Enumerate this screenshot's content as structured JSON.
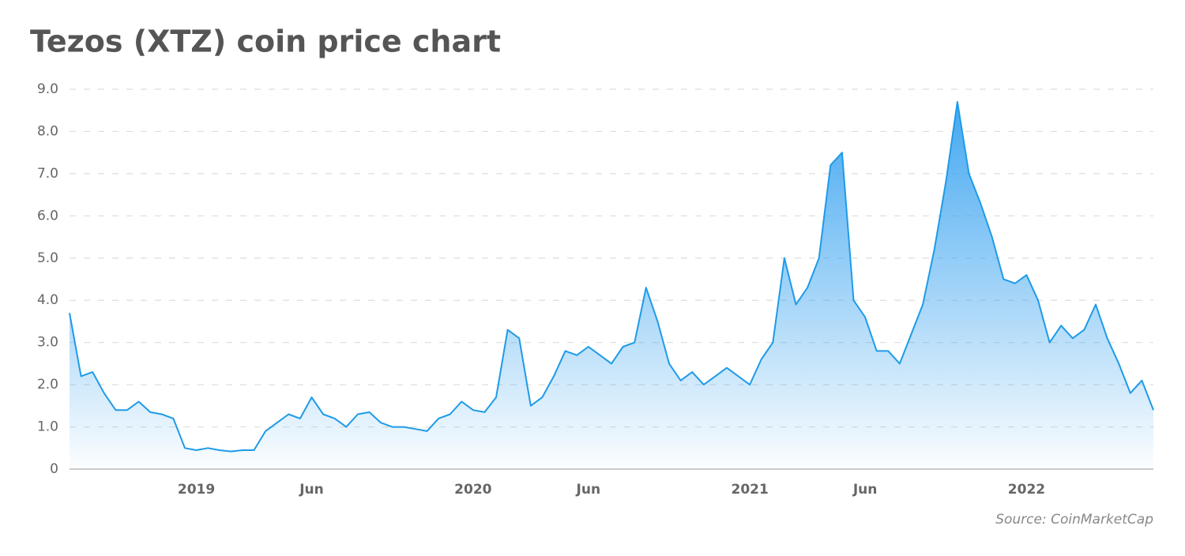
{
  "chart_data": {
    "type": "area",
    "title": "Tezos (XTZ) coin price chart",
    "source": "Source: CoinMarketCap",
    "categories": [
      null,
      null,
      null,
      null,
      null,
      null,
      null,
      null,
      null,
      null,
      null,
      "2019",
      null,
      null,
      null,
      null,
      null,
      null,
      null,
      null,
      null,
      "Jun",
      null,
      null,
      null,
      null,
      null,
      null,
      null,
      null,
      null,
      null,
      null,
      null,
      null,
      "2020",
      null,
      null,
      null,
      null,
      null,
      null,
      null,
      null,
      null,
      "Jun",
      null,
      null,
      null,
      null,
      null,
      null,
      null,
      null,
      null,
      null,
      null,
      null,
      null,
      "2021",
      null,
      null,
      null,
      null,
      null,
      null,
      null,
      null,
      null,
      "Jun",
      null,
      null,
      null,
      null,
      null,
      null,
      null,
      null,
      null,
      null,
      null,
      null,
      null,
      "2022",
      null,
      null,
      null,
      null,
      null,
      null,
      null,
      null,
      null,
      null,
      null
    ],
    "values": [
      3.7,
      2.2,
      2.3,
      1.8,
      1.4,
      1.4,
      1.6,
      1.35,
      1.3,
      1.2,
      0.5,
      0.45,
      0.5,
      0.45,
      0.42,
      0.45,
      0.45,
      0.9,
      1.1,
      1.3,
      1.2,
      1.7,
      1.3,
      1.2,
      1.0,
      1.3,
      1.35,
      1.1,
      1.0,
      1.0,
      0.95,
      0.9,
      1.2,
      1.3,
      1.6,
      1.4,
      1.35,
      1.7,
      3.3,
      3.1,
      1.5,
      1.7,
      2.2,
      2.8,
      2.7,
      2.9,
      2.7,
      2.5,
      2.9,
      3.0,
      4.3,
      3.5,
      2.5,
      2.1,
      2.3,
      2.0,
      2.2,
      2.4,
      2.2,
      2.0,
      2.6,
      3.0,
      5.0,
      3.9,
      4.3,
      5.0,
      7.2,
      7.5,
      4.0,
      3.6,
      2.8,
      2.8,
      2.5,
      3.2,
      3.9,
      5.2,
      6.8,
      8.7,
      7.0,
      6.3,
      5.5,
      4.5,
      4.4,
      4.6,
      4.0,
      3.0,
      3.4,
      3.1,
      3.3,
      3.9,
      3.1,
      2.5,
      1.8,
      2.1,
      1.4
    ],
    "color": "#1e9be8",
    "ylim": [
      0,
      9
    ],
    "yticks": [
      0,
      {
        "value": 1,
        "label": "1.0"
      },
      {
        "value": 2,
        "label": "2.0"
      },
      {
        "value": 3,
        "label": "3.0"
      },
      {
        "value": 4,
        "label": "4.0"
      },
      {
        "value": 5,
        "label": "5.0"
      },
      {
        "value": 6,
        "label": "6.0"
      },
      {
        "value": 7,
        "label": "7.0"
      },
      {
        "value": 8,
        "label": "8.0"
      },
      {
        "value": 9,
        "label": "9.0"
      }
    ],
    "grid": true
  }
}
